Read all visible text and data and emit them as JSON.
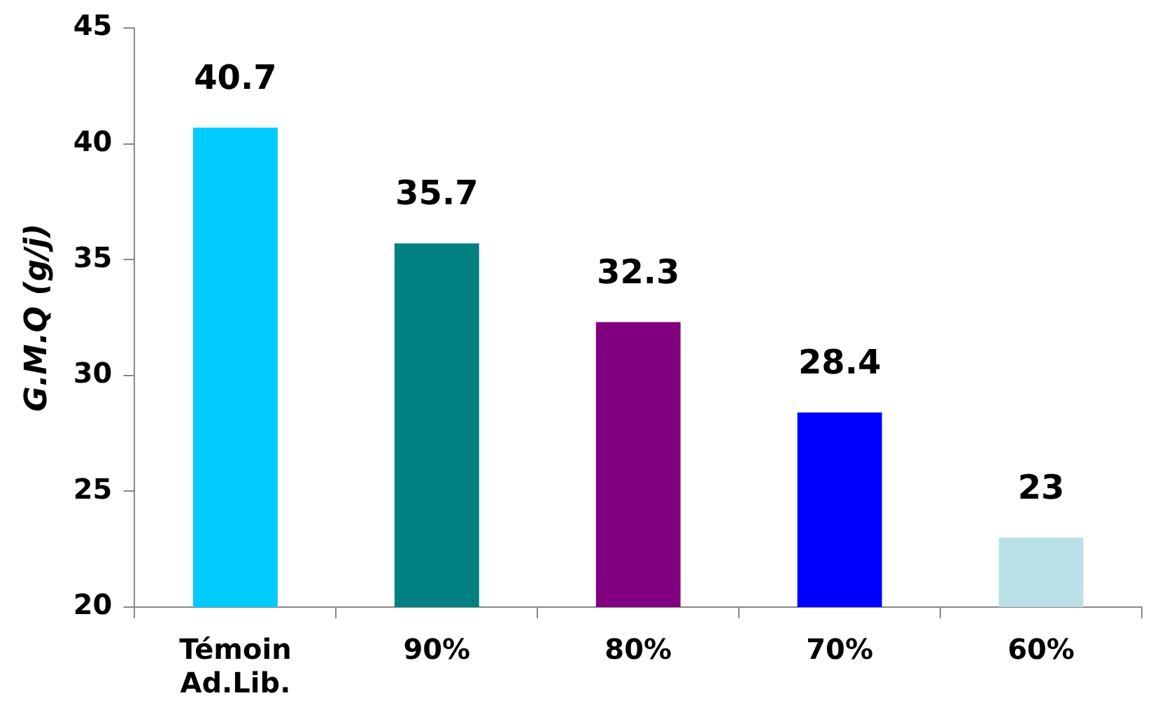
{
  "chart_data": {
    "type": "bar",
    "ylabel": "G.M.Q (g/j)",
    "categories": [
      "Témoin Ad.Lib.",
      "90%",
      "80%",
      "70%",
      "60%"
    ],
    "values": [
      40.7,
      35.7,
      32.3,
      28.4,
      23
    ],
    "colors": [
      "#00ccff",
      "#008080",
      "#800080",
      "#0000ff",
      "#b8e0e6"
    ],
    "ylim": [
      20,
      45
    ],
    "yticks": [
      20,
      25,
      30,
      35,
      40,
      45
    ],
    "grid": false,
    "legend": false,
    "data_labels": true
  }
}
